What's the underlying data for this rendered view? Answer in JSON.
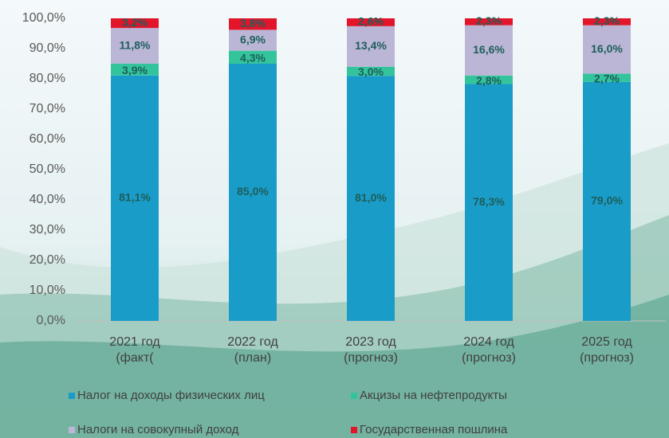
{
  "chart_data": {
    "type": "stacked_bar",
    "categories": [
      "2021 год\n(факт(",
      "2022 год\n(план)",
      "2023 год\n(прогноз)",
      "2024 год\n(прогноз)",
      "2025 год\n(прогноз)"
    ],
    "series": [
      {
        "name": "Налог на доходы физических лиц",
        "color": "#1a9cc8",
        "values": [
          81.1,
          85.0,
          81.0,
          78.3,
          79.0
        ],
        "value_labels": [
          "81,1%",
          "85,0%",
          "81,0%",
          "78,3%",
          "79,0%"
        ]
      },
      {
        "name": "Акцизы на нефтепродукты",
        "color": "#34c49c",
        "values": [
          3.9,
          4.3,
          3.0,
          2.8,
          2.7
        ],
        "value_labels": [
          "3,9%",
          "4,3%",
          "3,0%",
          "2,8%",
          "2,7%"
        ]
      },
      {
        "name": "Налоги на совокупный доход",
        "color": "#bbb6d6",
        "values": [
          11.8,
          6.9,
          13.4,
          16.6,
          16.0
        ],
        "value_labels": [
          "11,8%",
          "6,9%",
          "13,4%",
          "16,6%",
          "16,0%"
        ]
      },
      {
        "name": "Государственная пошлина",
        "color": "#e3152a",
        "values": [
          3.2,
          3.8,
          2.6,
          2.3,
          2.3
        ],
        "value_labels": [
          "3,2%",
          "3,8%",
          "2,6%",
          "2,3%",
          "2,3%"
        ]
      }
    ],
    "ylim": [
      0,
      100
    ],
    "yticks": [
      {
        "value": 0,
        "label": "0,0%"
      },
      {
        "value": 10,
        "label": "10,0%"
      },
      {
        "value": 20,
        "label": "20,0%"
      },
      {
        "value": 30,
        "label": "30,0%"
      },
      {
        "value": 40,
        "label": "40,0%"
      },
      {
        "value": 50,
        "label": "50,0%"
      },
      {
        "value": 60,
        "label": "60,0%"
      },
      {
        "value": 70,
        "label": "70,0%"
      },
      {
        "value": 80,
        "label": "80,0%"
      },
      {
        "value": 90,
        "label": "90,0%"
      },
      {
        "value": 100,
        "label": "100,0%"
      }
    ],
    "grid": false
  }
}
